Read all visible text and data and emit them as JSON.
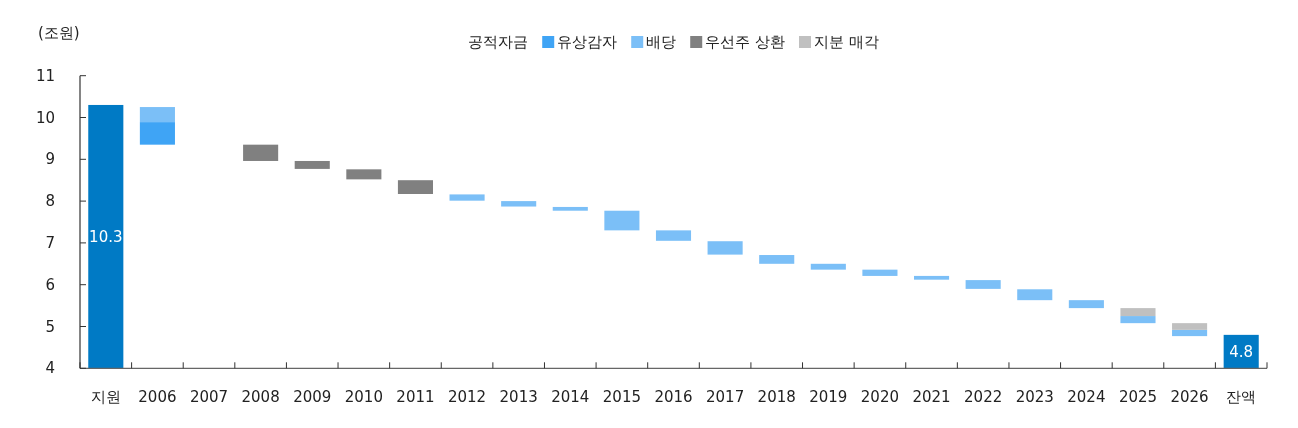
{
  "chart_data": {
    "type": "bar",
    "ylabel": "(조원)",
    "legend_title": "공적자금",
    "legend": "top",
    "grid": false,
    "categories": [
      "지원",
      "2006",
      "2007",
      "2008",
      "2009",
      "2010",
      "2011",
      "2012",
      "2013",
      "2014",
      "2015",
      "2016",
      "2017",
      "2018",
      "2019",
      "2020",
      "2021",
      "2022",
      "2023",
      "2024",
      "2025",
      "2026",
      "잔액"
    ],
    "ylim": [
      4,
      11
    ],
    "yticks": [
      4,
      5,
      6,
      7,
      8,
      9,
      10,
      11
    ],
    "series": [
      {
        "color": "#007ac5",
        "values": [
          10.3,
          null,
          null,
          null,
          null,
          null,
          null,
          null,
          null,
          null,
          null,
          null,
          null,
          null,
          null,
          null,
          null,
          null,
          null,
          null,
          null,
          null,
          4.8
        ],
        "value_labels": [
          "10.3",
          null,
          null,
          null,
          null,
          null,
          null,
          null,
          null,
          null,
          null,
          null,
          null,
          null,
          null,
          null,
          null,
          null,
          null,
          null,
          null,
          null,
          "4.8"
        ]
      },
      {
        "name": "유상감자",
        "color": "#3fa4f5",
        "base": [
          null,
          9.35,
          null,
          null,
          null,
          null,
          null,
          null,
          null,
          null,
          null,
          null,
          null,
          null,
          null,
          null,
          null,
          null,
          null,
          null,
          null,
          null,
          null
        ],
        "values": [
          null,
          0.54,
          null,
          null,
          null,
          null,
          null,
          null,
          null,
          null,
          null,
          null,
          null,
          null,
          null,
          null,
          null,
          null,
          null,
          null,
          null,
          null,
          null
        ]
      },
      {
        "name": "배당",
        "color": "#7bbff7",
        "base": [
          null,
          9.89,
          null,
          null,
          null,
          null,
          null,
          8.01,
          7.87,
          7.77,
          7.3,
          7.05,
          6.72,
          6.5,
          6.36,
          6.21,
          6.12,
          5.9,
          5.63,
          5.44,
          5.08,
          4.77,
          null
        ],
        "values": [
          null,
          0.36,
          null,
          null,
          null,
          null,
          null,
          0.15,
          0.13,
          0.09,
          0.47,
          0.25,
          0.32,
          0.21,
          0.14,
          0.15,
          0.09,
          0.21,
          0.26,
          0.19,
          0.17,
          0.15,
          null
        ]
      },
      {
        "name": "우선주 상환",
        "color": "#808080",
        "base": [
          null,
          null,
          null,
          8.96,
          8.77,
          8.52,
          8.17,
          null,
          null,
          null,
          null,
          null,
          null,
          null,
          null,
          null,
          null,
          null,
          null,
          null,
          null,
          null,
          null
        ],
        "values": [
          null,
          null,
          null,
          0.39,
          0.19,
          0.24,
          0.33,
          null,
          null,
          null,
          null,
          null,
          null,
          null,
          null,
          null,
          null,
          null,
          null,
          null,
          null,
          null,
          null
        ]
      },
      {
        "name": "지분 매각",
        "color": "#c0c0c0",
        "base": [
          null,
          null,
          null,
          null,
          null,
          null,
          null,
          null,
          null,
          null,
          null,
          null,
          null,
          null,
          null,
          null,
          null,
          null,
          null,
          null,
          5.25,
          4.92,
          null
        ],
        "values": [
          null,
          null,
          null,
          null,
          null,
          null,
          null,
          null,
          null,
          null,
          null,
          null,
          null,
          null,
          null,
          null,
          null,
          null,
          null,
          null,
          0.19,
          0.16,
          null
        ]
      }
    ]
  }
}
